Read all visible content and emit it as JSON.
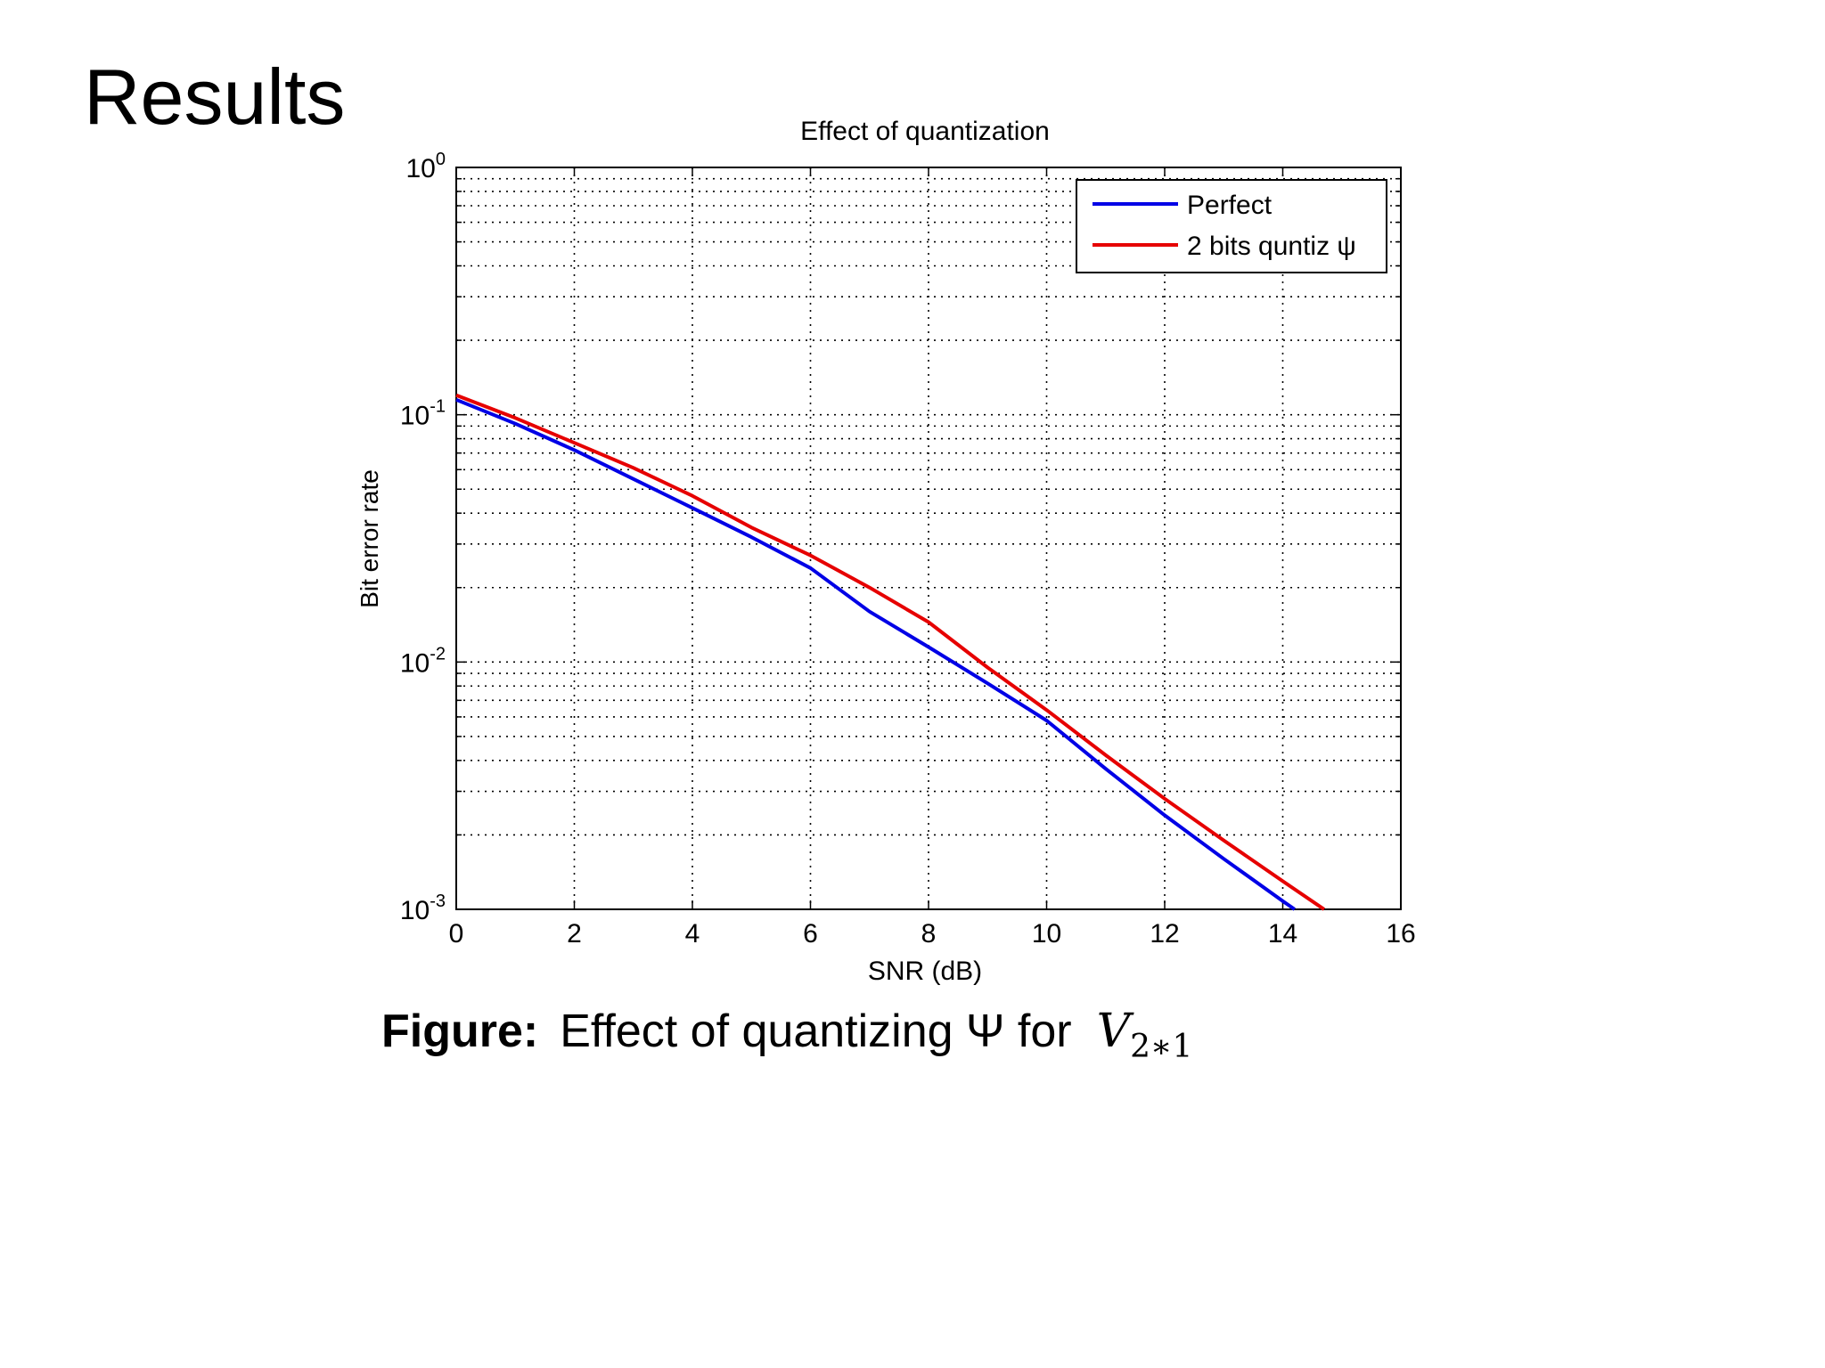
{
  "slide": {
    "title": "Results"
  },
  "caption": {
    "label": "Figure:",
    "text": "Effect of quantizing Ψ for",
    "math_symbol": "V",
    "math_subscript": "2∗1"
  },
  "chart_data": {
    "type": "line",
    "title": "Effect of quantization",
    "xlabel": "SNR (dB)",
    "ylabel": "Bit error rate",
    "xlim": [
      0,
      16
    ],
    "ylim": [
      0.001,
      1
    ],
    "yscale": "log",
    "grid": true,
    "legend_position": "top-right",
    "x_ticks": [
      "0",
      "2",
      "4",
      "6",
      "8",
      "10",
      "12",
      "14",
      "16"
    ],
    "y_ticks": [
      {
        "base": "10",
        "exp": "0"
      },
      {
        "base": "10",
        "exp": "-1"
      },
      {
        "base": "10",
        "exp": "-2"
      },
      {
        "base": "10",
        "exp": "-3"
      }
    ],
    "series": [
      {
        "name": "Perfect",
        "color": "#0000e6",
        "x": [
          0,
          1,
          2,
          3,
          4,
          5,
          6,
          7,
          8,
          9,
          10,
          11,
          12,
          13,
          14,
          14.2
        ],
        "y": [
          0.115,
          0.092,
          0.072,
          0.055,
          0.042,
          0.032,
          0.024,
          0.016,
          0.0115,
          0.0082,
          0.0058,
          0.0037,
          0.0024,
          0.0016,
          0.00108,
          0.001
        ]
      },
      {
        "name": "2 bits quntiz ψ",
        "color": "#e60000",
        "x": [
          0,
          1,
          2,
          3,
          4,
          5,
          6,
          7,
          8,
          9,
          10,
          11,
          12,
          13,
          14,
          14.7
        ],
        "y": [
          0.12,
          0.097,
          0.077,
          0.061,
          0.047,
          0.035,
          0.027,
          0.02,
          0.0145,
          0.0095,
          0.0064,
          0.0042,
          0.0028,
          0.0019,
          0.0013,
          0.001
        ]
      }
    ]
  }
}
